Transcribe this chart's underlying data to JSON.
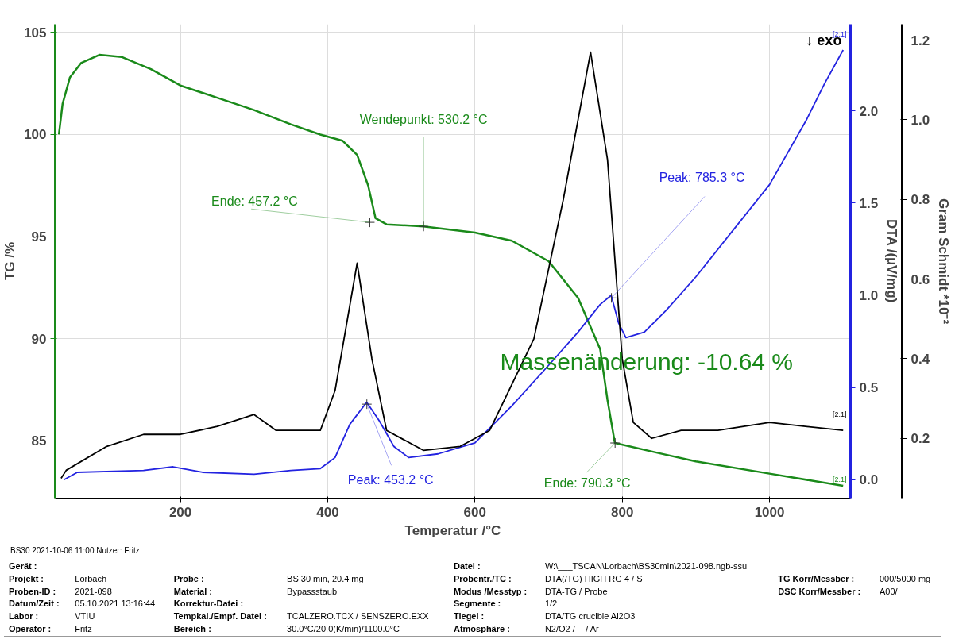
{
  "chart_data": {
    "type": "line",
    "xlabel": "Temperatur /°C",
    "ylabel": "TG /%",
    "y2label": "DTA /(µV/mg)",
    "y3label": "Gram Schmidt *10⁻²",
    "xlim": [
      30,
      1110
    ],
    "xticks": [
      200,
      400,
      600,
      800,
      1000
    ],
    "ylim": [
      82.2,
      105.4
    ],
    "yticks": [
      85,
      90,
      95,
      100,
      105
    ],
    "y2lim": [
      -0.1,
      2.47
    ],
    "y2ticks": [
      {
        "value": 0,
        "label": "0.0"
      },
      0.5,
      {
        "value": 1,
        "label": "1.0"
      },
      1.5,
      {
        "value": 2,
        "label": "2.0"
      }
    ],
    "y3lim": [
      0.05,
      1.24
    ],
    "y3ticks": [
      0.2,
      0.4,
      0.6,
      0.8,
      {
        "value": 1,
        "label": "1.0"
      },
      1.2
    ],
    "grid": true,
    "series": [
      {
        "color": "#1a8a1a",
        "x": [
          35,
          40,
          50,
          65,
          90,
          120,
          160,
          200,
          250,
          300,
          350,
          390,
          420,
          440,
          455,
          465,
          480,
          530,
          600,
          650,
          700,
          740,
          770,
          780,
          790,
          850,
          900,
          1000,
          1100
        ],
        "values": [
          100.0,
          101.5,
          102.8,
          103.5,
          103.9,
          103.8,
          103.2,
          102.4,
          101.8,
          101.2,
          100.5,
          100.0,
          99.7,
          99.0,
          97.5,
          95.9,
          95.6,
          95.5,
          95.2,
          94.8,
          93.8,
          92.0,
          89.5,
          87.0,
          84.9,
          84.4,
          84.0,
          83.4,
          82.8
        ]
      },
      {
        "color": "#2323e0",
        "axis": "y2",
        "x": [
          42,
          60,
          150,
          190,
          230,
          300,
          350,
          390,
          410,
          430,
          453,
          470,
          490,
          510,
          550,
          600,
          650,
          700,
          740,
          770,
          785,
          795,
          805,
          830,
          860,
          900,
          950,
          1000,
          1050,
          1075,
          1100
        ],
        "values": [
          0.0,
          0.04,
          0.05,
          0.07,
          0.04,
          0.03,
          0.05,
          0.06,
          0.12,
          0.3,
          0.42,
          0.32,
          0.18,
          0.12,
          0.14,
          0.2,
          0.4,
          0.62,
          0.8,
          0.95,
          1.0,
          0.85,
          0.77,
          0.8,
          0.92,
          1.1,
          1.35,
          1.6,
          1.95,
          2.15,
          2.33
        ]
      },
      {
        "color": "#000000",
        "axis": "y3",
        "x": [
          38,
          45,
          100,
          150,
          200,
          250,
          300,
          330,
          390,
          410,
          440,
          460,
          480,
          530,
          580,
          620,
          680,
          720,
          757,
          780,
          800,
          815,
          840,
          880,
          930,
          1000,
          1100
        ],
        "values": [
          0.1,
          0.12,
          0.18,
          0.21,
          0.21,
          0.23,
          0.26,
          0.22,
          0.22,
          0.32,
          0.64,
          0.4,
          0.22,
          0.17,
          0.18,
          0.22,
          0.45,
          0.8,
          1.17,
          0.9,
          0.4,
          0.24,
          0.2,
          0.22,
          0.22,
          0.24,
          0.22
        ]
      }
    ],
    "annotations": [
      {
        "text": "Wendepunkt: 530.2 °C",
        "x": 530.2,
        "y": 95.5
      },
      {
        "text": "Ende: 457.2 °C",
        "x": 457.2,
        "y": 95.7
      },
      {
        "text": "Peak: 785.3 °C",
        "x": 785.3,
        "y": 92.0
      },
      {
        "text": "Peak: 453.2 °C",
        "x": 453.2,
        "y": 86.8
      },
      {
        "text": "Ende: 790.3 °C",
        "x": 790.3,
        "y": 84.9
      },
      "Massenänderung: -10.64 %",
      "↓ exo",
      "BS30   2021-10-06 11:00   Nutzer: Fritz",
      "[2.1]",
      "[2.1]",
      "[2.1]",
      "Gerät :\t\t\t\tDatei :\tW:\\___TSCAN\\Lorbach\\BS30min\\2021-098.ngb-ssu",
      "Projekt :\tLorbach\tProbe :\tBS 30 min, 20.4 mg\tProbentr./TC :\tDTA(/TG) HIGH RG 4 / S\tTG Korr/Messber :\t000/5000 mg",
      "Proben-ID :\t2021-098\tMaterial :\tBypassstaub\tModus /Messtyp :\tDTA-TG / Probe\tDSC Korr/Messber :\tA00/",
      "Datum/Zeit :\t05.10.2021 13:16:44\tKorrektur-Datei :\t\tSegmente :\t1/2",
      "Labor :\tVTIU\tTempkal./Empf. Datei :\tTCALZERO.TCX / SENSZERO.EXX\tTiegel :\tDTA/TG crucible Al2O3",
      "Operator :\tFritz\tBereich :\t30.0°C/20.0(K/min)/1100.0°C\tAtmosphäre :\tN2/O2 / -- / Ar"
    ]
  }
}
